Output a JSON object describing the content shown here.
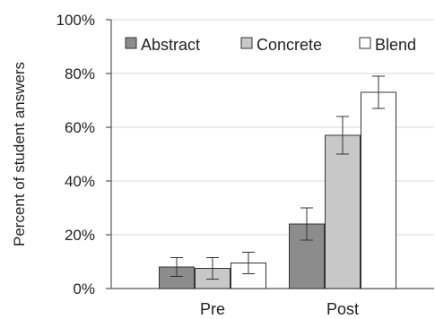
{
  "chart_data": {
    "type": "bar",
    "title": "",
    "xlabel": "",
    "ylabel": "Percent of student answers",
    "categories": [
      "Pre",
      "Post"
    ],
    "yticks": [
      "0%",
      "20%",
      "40%",
      "60%",
      "80%",
      "100%"
    ],
    "ylim": [
      0,
      100
    ],
    "grid": true,
    "legend_position": "top",
    "series": [
      {
        "name": "Abstract",
        "color": "#8c8c8c",
        "values": [
          8,
          24
        ],
        "error": [
          3.5,
          6
        ]
      },
      {
        "name": "Concrete",
        "color": "#c8c8c8",
        "values": [
          7.5,
          57
        ],
        "error": [
          4,
          7
        ]
      },
      {
        "name": "Blend",
        "color": "#ffffff",
        "values": [
          9.5,
          73
        ],
        "error": [
          4,
          6
        ]
      }
    ]
  }
}
